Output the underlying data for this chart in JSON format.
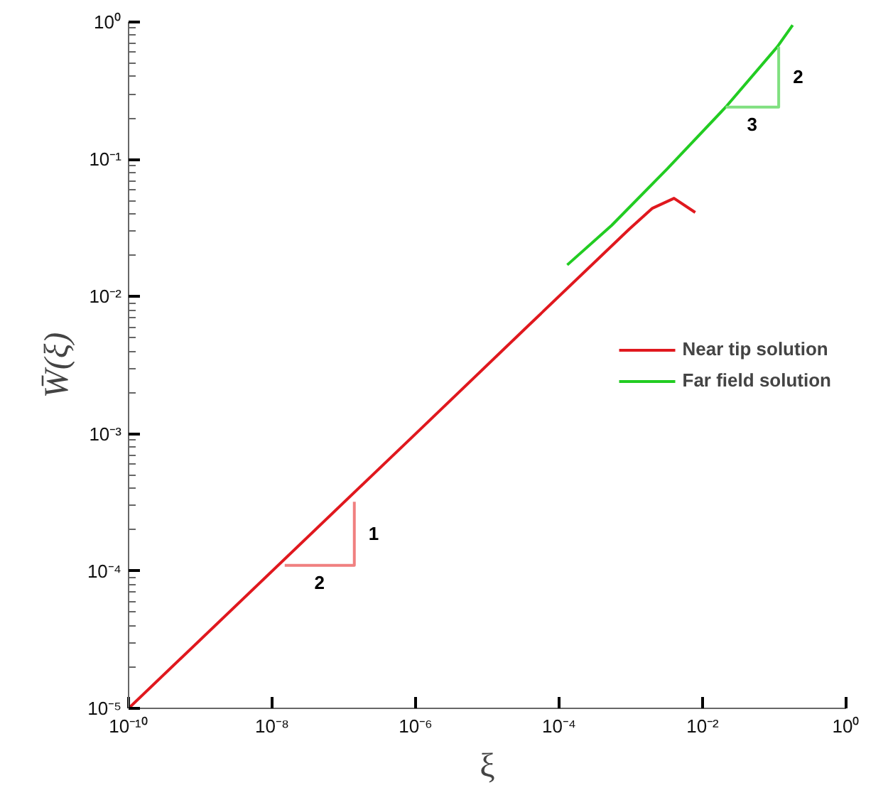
{
  "chart_data": {
    "type": "line",
    "xlabel": "ξ",
    "ylabel": "W̄(ξ)",
    "log": "xy",
    "grid": false,
    "legend": "right",
    "line_style": "solid",
    "marker": "none",
    "xlim": [
      1e-10,
      1
    ],
    "ylim": [
      1e-05,
      1
    ],
    "xticks": [
      {
        "value": 1e-10,
        "label": "10⁻¹⁰"
      },
      {
        "value": 1e-08,
        "label": "10⁻⁸"
      },
      {
        "value": 1e-06,
        "label": "10⁻⁶"
      },
      {
        "value": 0.0001,
        "label": "10⁻⁴"
      },
      {
        "value": 0.01,
        "label": "10⁻²"
      },
      {
        "value": 1,
        "label": "10⁰"
      }
    ],
    "yticks": [
      {
        "value": 1e-05,
        "label": "10⁻⁵"
      },
      {
        "value": 0.0001,
        "label": "10⁻⁴"
      },
      {
        "value": 0.001,
        "label": "10⁻³"
      },
      {
        "value": 0.01,
        "label": "10⁻²"
      },
      {
        "value": 0.1,
        "label": "10⁻¹"
      },
      {
        "value": 1,
        "label": "10⁰"
      }
    ],
    "series": [
      {
        "name": "Near tip solution",
        "color": "#e0181e",
        "x": [
          1e-10,
          1e-06,
          3.8e-05,
          0.00095,
          0.002,
          0.004,
          0.0079
        ],
        "values": [
          1e-05,
          0.001,
          0.0062,
          0.031,
          0.044,
          0.052,
          0.041
        ]
      },
      {
        "name": "Far field solution",
        "color": "#22cc22",
        "x": [
          0.00013,
          0.00054,
          0.0032,
          0.021,
          0.11,
          0.18
        ],
        "values": [
          0.017,
          0.033,
          0.085,
          0.24,
          0.66,
          0.95
        ]
      },
      {
        "color": "#f08080",
        "x": [
          1.5e-08,
          1.4e-07,
          1.4e-07
        ],
        "values": [
          0.00011,
          0.00011,
          0.00032
        ]
      },
      {
        "color": "#80e080",
        "x": [
          0.021,
          0.115,
          0.115
        ],
        "values": [
          0.24,
          0.24,
          0.66
        ]
      }
    ],
    "annotations": [
      "1",
      "2",
      "2",
      "3"
    ]
  }
}
